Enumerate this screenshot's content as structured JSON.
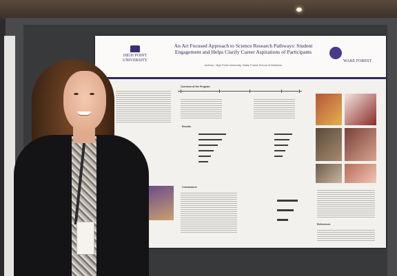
{
  "poster": {
    "logo_left": "HIGH POINT UNIVERSITY",
    "title": "An Art Focused Approach to Science Research Pathways: Student Engagement and Helps Clarify Career Aspirations of Participants",
    "authors": "Authors, High Point University; Wake Forest School of Medicine",
    "logo_right": "WAKE FOREST",
    "section_headings": [
      "Overview of the Program",
      "Results",
      "Conclusions",
      "References"
    ]
  },
  "colors": {
    "poster_header_rule": "#2e2560",
    "jacket": "#141416",
    "hair": "#6b3f22"
  }
}
